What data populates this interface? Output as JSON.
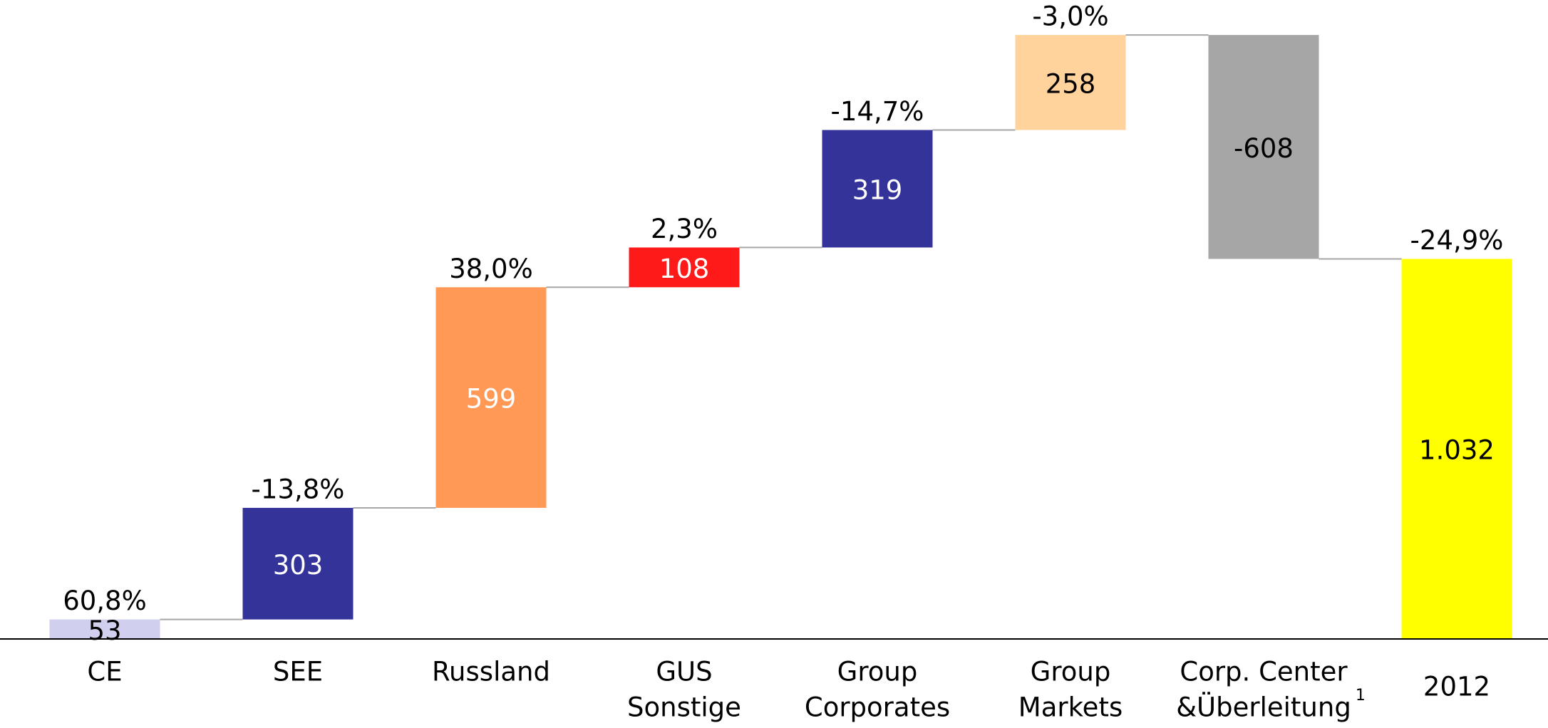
{
  "chart_data": {
    "type": "waterfall",
    "categories": [
      [
        "CE"
      ],
      [
        "SEE"
      ],
      [
        "Russland"
      ],
      [
        "GUS",
        "Sonstige"
      ],
      [
        "Group",
        "Corporates"
      ],
      [
        "Group",
        "Markets"
      ],
      [
        "Corp. Center",
        "&Überleitung"
      ],
      [
        "2012"
      ]
    ],
    "category_footnotes": [
      null,
      null,
      null,
      null,
      null,
      null,
      "1",
      null
    ],
    "values": [
      53,
      303,
      599,
      108,
      319,
      258,
      -608,
      1032
    ],
    "value_labels": [
      "53",
      "303",
      "599",
      "108",
      "319",
      "258",
      "-608",
      "1.032"
    ],
    "annotations": [
      "60,8%",
      "-13,8%",
      "38,0%",
      "2,3%",
      "-14,7%",
      "-3,0%",
      null,
      "-24,9%"
    ],
    "is_total": [
      false,
      false,
      false,
      false,
      false,
      false,
      false,
      true
    ],
    "colors": [
      "#d0d0ee",
      "#333399",
      "#ff9955",
      "#ff1a1a",
      "#333399",
      "#ffd39b",
      "#a6a6a6",
      "#ffff00"
    ],
    "value_label_colors": [
      "#000000",
      "#ffffff",
      "#ffffff",
      "#ffffff",
      "#ffffff",
      "#000000",
      "#000000",
      "#000000"
    ],
    "ylim": [
      0,
      1735
    ]
  }
}
